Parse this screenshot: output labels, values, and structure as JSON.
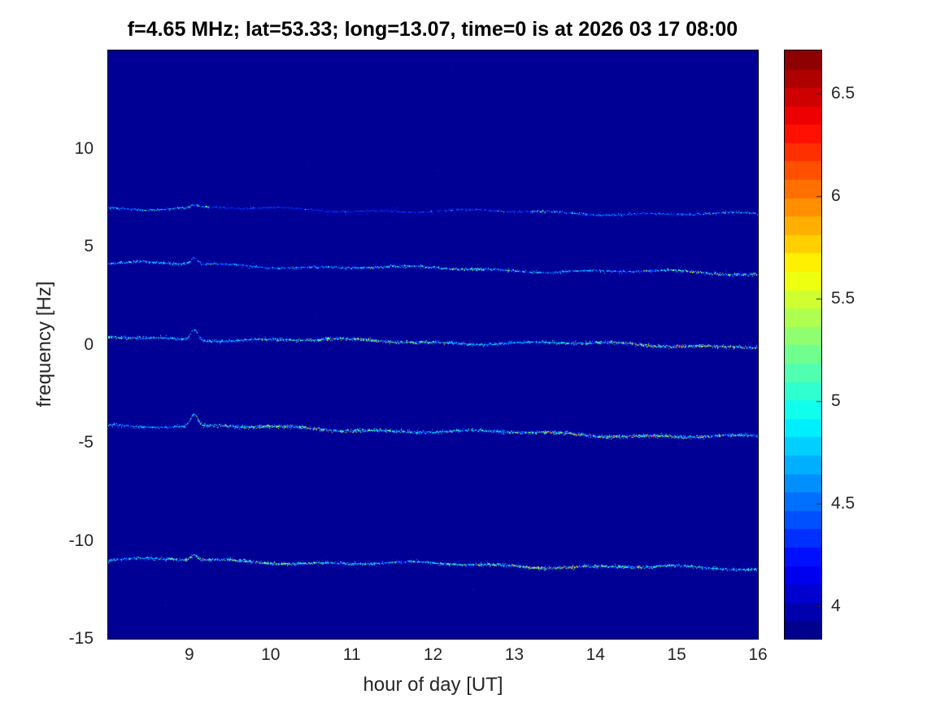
{
  "chart_data": {
    "type": "heatmap",
    "title": "f=4.65 MHz;  lat=53.33; long=13.07, time=0 is at 2026 03 17 08:00",
    "xlabel": "hour of day [UT]",
    "ylabel": "frequency [Hz]",
    "xlim": [
      8,
      16
    ],
    "ylim": [
      -15,
      15
    ],
    "clim": [
      3.84,
      6.71
    ],
    "x_ticks": [
      9,
      10,
      11,
      12,
      13,
      14,
      15,
      16
    ],
    "y_ticks": [
      10,
      5,
      0,
      -5,
      -10,
      -15
    ],
    "colorbar_ticks": [
      6.5,
      6,
      5.5,
      5,
      4.5,
      4
    ],
    "colorbar_levels": 32,
    "colormap": "jet",
    "legend": "none",
    "grid": false,
    "background_value": 3.9,
    "background_speckles": 30,
    "spike_hour": 9.06,
    "traces": [
      {
        "name": "doppler-trace-plus7",
        "start_hz": 7.0,
        "end_hz": 6.62,
        "base_value": 4.05,
        "peak_value": 5.3,
        "density": 2.0,
        "spread": 0.9,
        "ramp_lo": 0.9,
        "ramp_hi": 1.25,
        "dip": [
          9.25,
          13.2,
          0.4
        ],
        "spike_amp": 0.12,
        "halo": 0.18
      },
      {
        "name": "doppler-trace-plus4",
        "start_hz": 4.15,
        "end_hz": 3.6,
        "base_value": 4.15,
        "peak_value": 5.7,
        "density": 2.6,
        "spread": 1.0,
        "ramp_lo": 0.75,
        "ramp_hi": 1.25,
        "dip": null,
        "spike_amp": 0.3,
        "halo": 0.25
      },
      {
        "name": "doppler-trace-zero",
        "start_hz": 0.35,
        "end_hz": -0.08,
        "base_value": 4.25,
        "peak_value": 6.0,
        "density": 3.4,
        "spread": 1.15,
        "ramp_lo": 0.9,
        "ramp_hi": 1.15,
        "dip": null,
        "spike_amp": 0.55,
        "halo": 0.35
      },
      {
        "name": "doppler-trace-minus4",
        "start_hz": -4.08,
        "end_hz": -4.75,
        "base_value": 4.25,
        "peak_value": 6.15,
        "density": 3.6,
        "spread": 1.25,
        "ramp_lo": 0.9,
        "ramp_hi": 1.2,
        "dip": null,
        "spike_amp": 0.6,
        "halo": 0.4
      },
      {
        "name": "doppler-trace-minus11",
        "start_hz": -10.95,
        "end_hz": -11.45,
        "base_value": 4.25,
        "peak_value": 6.0,
        "density": 3.2,
        "spread": 1.15,
        "ramp_lo": 0.95,
        "ramp_hi": 1.15,
        "dip": null,
        "spike_amp": 0.25,
        "halo": 0.35
      }
    ]
  }
}
